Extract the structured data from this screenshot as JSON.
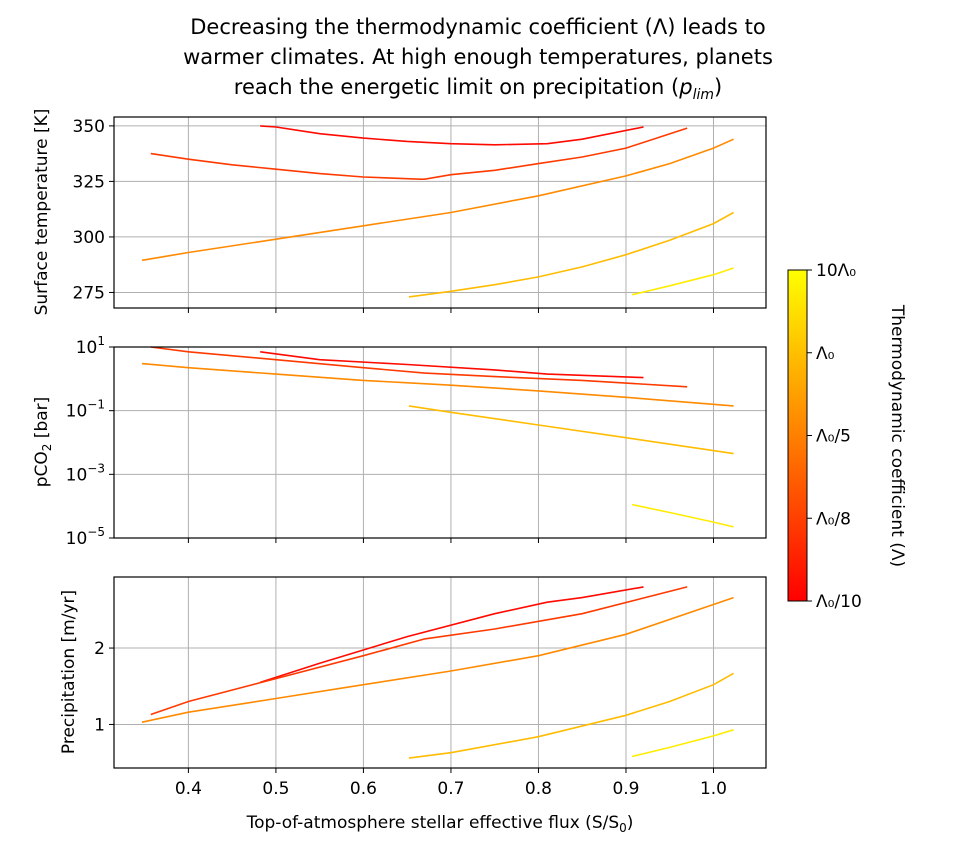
{
  "chart_data": {
    "type": "line",
    "title": "Decreasing the thermodynamic coefficient (Λ) leads to warmer climates. At high enough temperatures, planets reach the energetic limit on precipitation (p_lim)",
    "title_lines": [
      "Decreasing the thermodynamic coefficient (Λ) leads to",
      "warmer climates. At high enough temperatures, planets",
      "reach the energetic limit on precipitation ("
    ],
    "title_plim": "p",
    "title_plim_sub": "lim",
    "title_close": ")",
    "xlabel_main": "Top-of-atmosphere stellar effective flux (S/S",
    "xlabel_sub": "0",
    "xlabel_close": ")",
    "xlim": [
      0.315,
      1.06
    ],
    "xticks": [
      0.4,
      0.5,
      0.6,
      0.7,
      0.8,
      0.9,
      1.0
    ],
    "xtick_labels": [
      "0.4",
      "0.5",
      "0.6",
      "0.7",
      "0.8",
      "0.9",
      "1.0"
    ],
    "colorbar": {
      "label": "Thermodynamic coefficient (Λ)",
      "colormap": [
        "#ff0000",
        "#ff8000",
        "#ffff00"
      ],
      "tick_labels": [
        "Λ₀/10",
        "Λ₀/8",
        "Λ₀/5",
        "Λ₀",
        "10Λ₀"
      ]
    },
    "panels": [
      {
        "name": "temperature",
        "ylabel": "Surface temperature [K]",
        "scale": "linear",
        "ylim": [
          268,
          354
        ],
        "yticks": [
          275,
          300,
          325,
          350
        ],
        "ytick_labels": [
          "275",
          "300",
          "325",
          "350"
        ],
        "series": [
          {
            "name": "Λ₀/10",
            "color": "#ff0a00",
            "x": [
              0.482,
              0.5,
              0.55,
              0.6,
              0.65,
              0.7,
              0.75,
              0.81,
              0.85,
              0.92
            ],
            "y": [
              350,
              349.5,
              346.5,
              344.5,
              343,
              342,
              341.5,
              342,
              344,
              349.5
            ]
          },
          {
            "name": "Λ₀/8",
            "color": "#ff3a00",
            "x": [
              0.357,
              0.4,
              0.45,
              0.5,
              0.55,
              0.6,
              0.665,
              0.67,
              0.7,
              0.75,
              0.8,
              0.85,
              0.9,
              0.97
            ],
            "y": [
              337.5,
              335,
              332.5,
              330.5,
              328.5,
              327,
              326,
              326,
              328,
              330,
              333,
              336,
              340,
              349
            ]
          },
          {
            "name": "Λ₀/5",
            "color": "#ff8a00",
            "x": [
              0.347,
              0.4,
              0.5,
              0.6,
              0.7,
              0.8,
              0.9,
              0.95,
              1.0,
              1.023
            ],
            "y": [
              289.5,
              293,
              299,
              305,
              311,
              318.5,
              327.5,
              333,
              340,
              344
            ]
          },
          {
            "name": "Λ₀",
            "color": "#ffbc00",
            "x": [
              0.652,
              0.7,
              0.75,
              0.8,
              0.85,
              0.9,
              0.95,
              1.0,
              1.023
            ],
            "y": [
              273,
              275.5,
              278.5,
              282,
              286.5,
              292,
              298.5,
              306,
              311
            ]
          },
          {
            "name": "10Λ₀",
            "color": "#ffec00",
            "x": [
              0.907,
              0.95,
              1.0,
              1.023
            ],
            "y": [
              274,
              278,
              283,
              286
            ]
          }
        ]
      },
      {
        "name": "pco2",
        "ylabel_main": "pCO",
        "ylabel_sub": "2",
        "ylabel_unit": " [bar]",
        "scale": "log",
        "ylim_log10": [
          -5,
          1
        ],
        "yticks_log10": [
          1,
          -1,
          -3,
          -5
        ],
        "ytick_base": "10",
        "ytick_exps": [
          "1",
          "−1",
          "−3",
          "−5"
        ],
        "series": [
          {
            "name": "Λ₀/10",
            "color": "#ff0a00",
            "x": [
              0.482,
              0.55,
              0.65,
              0.75,
              0.81,
              0.92
            ],
            "y": [
              0.85,
              0.6,
              0.45,
              0.28,
              0.15,
              0.04
            ]
          },
          {
            "name": "Λ₀/8",
            "color": "#ff3a00",
            "x": [
              0.357,
              0.4,
              0.5,
              0.6,
              0.67,
              0.75,
              0.85,
              0.97
            ],
            "y": [
              1.0,
              0.85,
              0.6,
              0.35,
              0.18,
              0.07,
              -0.05,
              -0.25
            ]
          },
          {
            "name": "Λ₀/5",
            "color": "#ff8a00",
            "x": [
              0.347,
              0.4,
              0.5,
              0.6,
              0.7,
              0.8,
              0.9,
              1.023
            ],
            "y": [
              0.48,
              0.35,
              0.15,
              -0.05,
              -0.2,
              -0.38,
              -0.58,
              -0.85
            ]
          },
          {
            "name": "Λ₀",
            "color": "#ffbc00",
            "x": [
              0.652,
              0.7,
              0.8,
              0.9,
              1.023
            ],
            "y": [
              -0.85,
              -1.05,
              -1.45,
              -1.85,
              -2.35
            ]
          },
          {
            "name": "10Λ₀",
            "color": "#ffec00",
            "x": [
              0.907,
              0.95,
              1.0,
              1.023
            ],
            "y": [
              -3.95,
              -4.2,
              -4.5,
              -4.65
            ]
          }
        ]
      },
      {
        "name": "precipitation",
        "ylabel": "Precipitation [m/yr]",
        "scale": "linear",
        "ylim": [
          0.43,
          2.93
        ],
        "yticks": [
          1,
          2
        ],
        "ytick_labels": [
          "1",
          "2"
        ],
        "series": [
          {
            "name": "Λ₀/10",
            "color": "#ff0a00",
            "x": [
              0.482,
              0.55,
              0.65,
              0.75,
              0.81,
              0.85,
              0.92
            ],
            "y": [
              1.55,
              1.8,
              2.15,
              2.45,
              2.6,
              2.66,
              2.8
            ]
          },
          {
            "name": "Λ₀/8",
            "color": "#ff3a00",
            "x": [
              0.357,
              0.4,
              0.5,
              0.6,
              0.67,
              0.75,
              0.85,
              0.97
            ],
            "y": [
              1.13,
              1.3,
              1.6,
              1.9,
              2.12,
              2.25,
              2.45,
              2.8
            ]
          },
          {
            "name": "Λ₀/5",
            "color": "#ff8a00",
            "x": [
              0.347,
              0.4,
              0.5,
              0.6,
              0.7,
              0.8,
              0.9,
              1.023
            ],
            "y": [
              1.03,
              1.16,
              1.34,
              1.52,
              1.7,
              1.9,
              2.18,
              2.66
            ]
          },
          {
            "name": "Λ₀",
            "color": "#ffbc00",
            "x": [
              0.652,
              0.7,
              0.8,
              0.9,
              0.95,
              1.0,
              1.023
            ],
            "y": [
              0.56,
              0.63,
              0.84,
              1.12,
              1.3,
              1.52,
              1.67
            ]
          },
          {
            "name": "10Λ₀",
            "color": "#ffec00",
            "x": [
              0.907,
              0.95,
              1.0,
              1.023
            ],
            "y": [
              0.58,
              0.7,
              0.85,
              0.93
            ]
          }
        ]
      }
    ]
  }
}
